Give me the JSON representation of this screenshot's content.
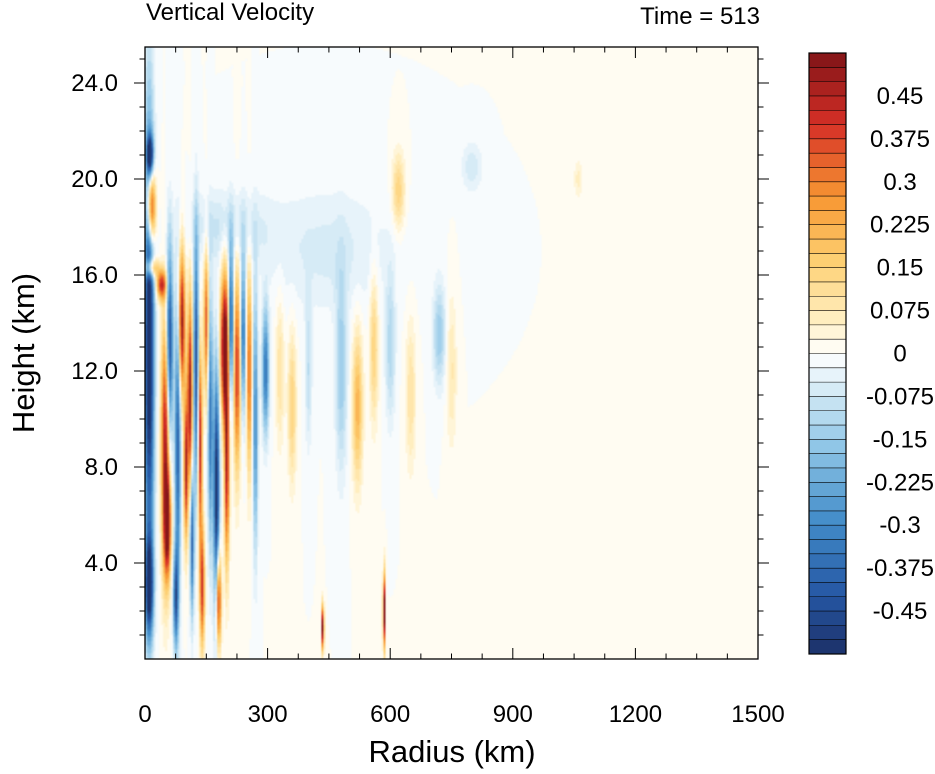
{
  "chart_data": {
    "type": "heatmap",
    "title": "Vertical Velocity",
    "subtitle": "Time = 513",
    "xlabel": "Radius (km)",
    "ylabel": "Height (km)",
    "xlim": [
      0,
      1500
    ],
    "ylim": [
      0,
      25.5
    ],
    "xticks": [
      0,
      300,
      600,
      900,
      1200,
      1500
    ],
    "xtick_labels": [
      "0",
      "300",
      "600",
      "900",
      "1200",
      "1500"
    ],
    "yticks": [
      4,
      8,
      12,
      16,
      20,
      24
    ],
    "ytick_labels": [
      "4.0",
      "8.0",
      "12.0",
      "16.0",
      "20.0",
      "24.0"
    ],
    "colorbar": {
      "min": -0.525,
      "max": 0.525,
      "step": 0.025,
      "labels": [
        "0.45",
        "0.375",
        "0.3",
        "0.225",
        "0.15",
        "0.075",
        "0",
        "-0.075",
        "-0.15",
        "-0.225",
        "-0.3",
        "-0.375",
        "-0.45"
      ],
      "label_values": [
        0.45,
        0.375,
        0.3,
        0.225,
        0.15,
        0.075,
        0,
        -0.075,
        -0.15,
        -0.225,
        -0.3,
        -0.375,
        -0.45
      ]
    },
    "features": [
      {
        "r": 10,
        "z": 13,
        "dr": 12,
        "dz": 9,
        "w": -0.6
      },
      {
        "r": 10,
        "z": 3,
        "dr": 10,
        "dz": 2,
        "w": -0.5
      },
      {
        "r": 15,
        "z": 18.8,
        "dr": 10,
        "dz": 1.6,
        "w": 0.6
      },
      {
        "r": 12,
        "z": 21,
        "dr": 8,
        "dz": 0.8,
        "w": -0.5
      },
      {
        "r": 15,
        "z": 16.3,
        "dr": 15,
        "dz": 0.4,
        "w": 0.35
      },
      {
        "r": 40,
        "z": 15.6,
        "dr": 12,
        "dz": 0.6,
        "w": 0.4
      },
      {
        "r": 50,
        "z": 9,
        "dr": 10,
        "dz": 5,
        "w": 0.5
      },
      {
        "r": 55,
        "z": 5.5,
        "dr": 8,
        "dz": 2,
        "w": 0.45
      },
      {
        "r": 60,
        "z": 13,
        "dr": 8,
        "dz": 4,
        "w": -0.5
      },
      {
        "r": 75,
        "z": 2.5,
        "dr": 6,
        "dz": 2,
        "w": -0.4
      },
      {
        "r": 80,
        "z": 9,
        "dr": 7,
        "dz": 6,
        "w": -0.4
      },
      {
        "r": 90,
        "z": 14,
        "dr": 8,
        "dz": 3,
        "w": 0.5
      },
      {
        "r": 100,
        "z": 8,
        "dr": 5,
        "dz": 3,
        "w": 0.45
      },
      {
        "r": 110,
        "z": 11,
        "dr": 6,
        "dz": 4,
        "w": 0.5
      },
      {
        "r": 115,
        "z": 5,
        "dr": 5,
        "dz": 3,
        "w": -0.4
      },
      {
        "r": 125,
        "z": 12.5,
        "dr": 6,
        "dz": 5,
        "w": -0.45
      },
      {
        "r": 135,
        "z": 9,
        "dr": 5,
        "dz": 4,
        "w": 0.45
      },
      {
        "r": 140,
        "z": 3,
        "dr": 6,
        "dz": 2.5,
        "w": 0.4
      },
      {
        "r": 150,
        "z": 14,
        "dr": 6,
        "dz": 3,
        "w": 0.35
      },
      {
        "r": 160,
        "z": 10,
        "dr": 6,
        "dz": 5,
        "w": -0.35
      },
      {
        "r": 175,
        "z": 7,
        "dr": 7,
        "dz": 5,
        "w": -0.55
      },
      {
        "r": 180,
        "z": 2.5,
        "dr": 6,
        "dz": 2,
        "w": 0.5
      },
      {
        "r": 195,
        "z": 13,
        "dr": 10,
        "dz": 3,
        "w": 0.6
      },
      {
        "r": 200,
        "z": 8,
        "dr": 6,
        "dz": 4,
        "w": 0.45
      },
      {
        "r": 210,
        "z": 14,
        "dr": 6,
        "dz": 3,
        "w": -0.45
      },
      {
        "r": 225,
        "z": 12,
        "dr": 8,
        "dz": 4,
        "w": 0.4
      },
      {
        "r": 240,
        "z": 13.5,
        "dr": 6,
        "dz": 3,
        "w": -0.35
      },
      {
        "r": 255,
        "z": 12,
        "dr": 6,
        "dz": 4,
        "w": 0.35
      },
      {
        "r": 270,
        "z": 10,
        "dr": 6,
        "dz": 5,
        "w": -0.3
      },
      {
        "r": 295,
        "z": 12,
        "dr": 8,
        "dz": 2.5,
        "w": -0.35
      },
      {
        "r": 330,
        "z": 12,
        "dr": 10,
        "dz": 3,
        "w": 0.1
      },
      {
        "r": 360,
        "z": 10.5,
        "dr": 10,
        "dz": 3,
        "w": 0.15
      },
      {
        "r": 400,
        "z": 12,
        "dr": 8,
        "dz": 3,
        "w": -0.1
      },
      {
        "r": 435,
        "z": 1.3,
        "dr": 3,
        "dz": 0.9,
        "w": 0.6
      },
      {
        "r": 480,
        "z": 12,
        "dr": 14,
        "dz": 4,
        "w": -0.15
      },
      {
        "r": 520,
        "z": 10.5,
        "dr": 12,
        "dz": 3,
        "w": 0.22
      },
      {
        "r": 560,
        "z": 13,
        "dr": 10,
        "dz": 3,
        "w": 0.15
      },
      {
        "r": 585,
        "z": 2,
        "dr": 3,
        "dz": 1.5,
        "w": 0.6
      },
      {
        "r": 600,
        "z": 13,
        "dr": 12,
        "dz": 3,
        "w": -0.12
      },
      {
        "r": 620,
        "z": 19.5,
        "dr": 15,
        "dz": 1.5,
        "w": 0.15
      },
      {
        "r": 650,
        "z": 11,
        "dr": 12,
        "dz": 3,
        "w": 0.1
      },
      {
        "r": 720,
        "z": 13.5,
        "dr": 15,
        "dz": 2,
        "w": -0.15
      },
      {
        "r": 750,
        "z": 12,
        "dr": 12,
        "dz": 3,
        "w": 0.08
      },
      {
        "r": 800,
        "z": 20.5,
        "dr": 25,
        "dz": 1,
        "w": -0.07
      },
      {
        "r": 1060,
        "z": 20,
        "dr": 10,
        "dz": 0.8,
        "w": 0.06
      },
      {
        "r": 200,
        "z": 18,
        "dr": 100,
        "dz": 1.5,
        "w": -0.08
      },
      {
        "r": 450,
        "z": 17,
        "dr": 150,
        "dz": 2.5,
        "w": -0.06
      }
    ]
  }
}
